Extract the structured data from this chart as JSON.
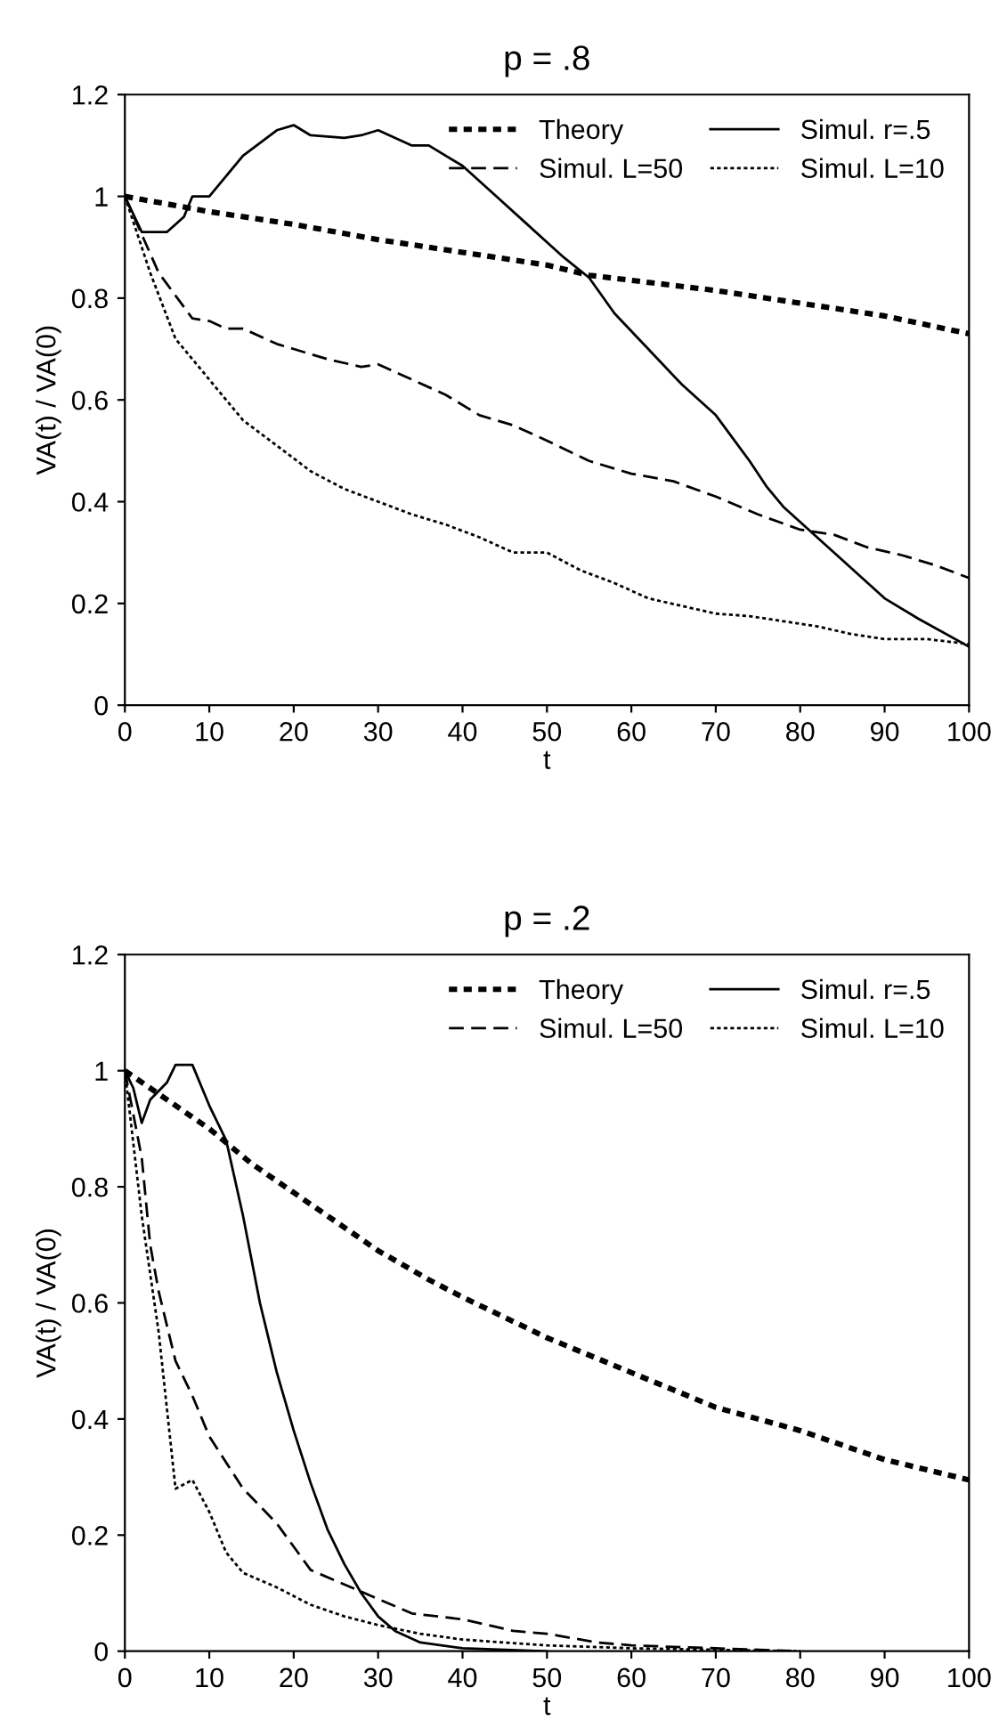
{
  "chart_data": [
    {
      "type": "line",
      "title": "p = .8",
      "xlabel": "t",
      "ylabel": "VA(t) / VA(0)",
      "xlim": [
        0,
        100
      ],
      "ylim": [
        0,
        1.2
      ],
      "xticks": [
        0,
        10,
        20,
        30,
        40,
        50,
        60,
        70,
        80,
        90,
        100
      ],
      "yticks": [
        0,
        {
          "value": 0.2,
          "label": "0.2"
        },
        {
          "value": 0.4,
          "label": "0.4"
        },
        {
          "value": 0.6,
          "label": "0.6"
        },
        {
          "value": 0.8,
          "label": "0.8"
        },
        1,
        {
          "value": 1.2,
          "label": "1.2"
        }
      ],
      "grid": false,
      "legend": "top right",
      "series": [
        {
          "name": "Theory",
          "color": "#000000",
          "line_style": "dotted",
          "x": [
            0,
            10,
            20,
            30,
            40,
            50,
            55,
            60,
            70,
            80,
            90,
            100
          ],
          "values": [
            1,
            0.97,
            0.945,
            0.915,
            0.89,
            0.865,
            0.845,
            0.835,
            0.815,
            0.79,
            0.765,
            0.73
          ]
        },
        {
          "name": "Simul. L=50",
          "color": "#000000",
          "line_style": "dashed",
          "x": [
            0,
            4,
            8,
            10,
            12,
            14,
            18,
            20,
            24,
            28,
            30,
            34,
            38,
            42,
            46,
            50,
            55,
            60,
            65,
            70,
            75,
            80,
            84,
            88,
            92,
            96,
            100
          ],
          "values": [
            1,
            0.85,
            0.76,
            0.755,
            0.74,
            0.74,
            0.71,
            0.7,
            0.68,
            0.665,
            0.67,
            0.64,
            0.61,
            0.57,
            0.55,
            0.52,
            0.48,
            0.455,
            0.44,
            0.41,
            0.375,
            0.345,
            0.335,
            0.31,
            0.295,
            0.275,
            0.25
          ]
        },
        {
          "name": "Simul. r=.5",
          "color": "#000000",
          "line_style": "solid",
          "x": [
            0,
            2,
            5,
            7,
            8,
            10,
            14,
            18,
            20,
            22,
            26,
            28,
            30,
            34,
            36,
            40,
            44,
            48,
            52,
            55,
            58,
            62,
            66,
            70,
            74,
            76,
            78,
            82,
            86,
            90,
            94,
            100
          ],
          "values": [
            1,
            0.93,
            0.93,
            0.96,
            1.0,
            1.0,
            1.08,
            1.13,
            1.14,
            1.12,
            1.115,
            1.12,
            1.13,
            1.1,
            1.1,
            1.06,
            1.0,
            0.94,
            0.88,
            0.84,
            0.77,
            0.7,
            0.63,
            0.57,
            0.48,
            0.43,
            0.39,
            0.33,
            0.27,
            0.21,
            0.17,
            0.115
          ]
        },
        {
          "name": "Simul. L=10",
          "color": "#000000",
          "line_style": "dotted",
          "x": [
            0,
            3,
            6,
            10,
            14,
            18,
            22,
            26,
            30,
            34,
            38,
            42,
            46,
            50,
            54,
            58,
            62,
            66,
            70,
            74,
            78,
            82,
            86,
            90,
            95,
            100
          ],
          "values": [
            1,
            0.85,
            0.72,
            0.64,
            0.56,
            0.51,
            0.46,
            0.425,
            0.4,
            0.375,
            0.355,
            0.33,
            0.3,
            0.3,
            0.265,
            0.24,
            0.21,
            0.195,
            0.18,
            0.175,
            0.165,
            0.155,
            0.14,
            0.13,
            0.13,
            0.12
          ]
        }
      ]
    },
    {
      "type": "line",
      "title": "p = .2",
      "xlabel": "t",
      "ylabel": "VA(t) / VA(0)",
      "xlim": [
        0,
        100
      ],
      "ylim": [
        0,
        1.2
      ],
      "xticks": [
        0,
        10,
        20,
        30,
        40,
        50,
        60,
        70,
        80,
        90,
        100
      ],
      "yticks": [
        0,
        {
          "value": 0.2,
          "label": "0.2"
        },
        {
          "value": 0.4,
          "label": "0.4"
        },
        {
          "value": 0.6,
          "label": "0.6"
        },
        {
          "value": 0.8,
          "label": "0.8"
        },
        1,
        {
          "value": 1.2,
          "label": "1.2"
        }
      ],
      "grid": false,
      "legend": "top right",
      "series": [
        {
          "name": "Theory",
          "color": "#000000",
          "line_style": "dotted",
          "x": [
            0,
            5,
            10,
            15,
            20,
            25,
            30,
            36,
            40,
            50,
            55,
            60,
            70,
            80,
            90,
            100
          ],
          "values": [
            1,
            0.95,
            0.9,
            0.84,
            0.79,
            0.74,
            0.69,
            0.64,
            0.61,
            0.54,
            0.51,
            0.48,
            0.42,
            0.38,
            0.33,
            0.295
          ]
        },
        {
          "name": "Simul. L=50",
          "color": "#000000",
          "line_style": "dashed",
          "x": [
            0,
            2,
            3,
            4,
            6,
            8,
            10,
            14,
            18,
            22,
            26,
            30,
            34,
            40,
            46,
            50,
            56,
            60,
            70,
            80
          ],
          "values": [
            1,
            0.85,
            0.7,
            0.62,
            0.5,
            0.44,
            0.37,
            0.28,
            0.22,
            0.14,
            0.115,
            0.09,
            0.065,
            0.055,
            0.035,
            0.03,
            0.015,
            0.01,
            0.005,
            0
          ]
        },
        {
          "name": "Simul. r=.5",
          "color": "#000000",
          "line_style": "solid",
          "x": [
            0,
            1,
            2,
            3,
            5,
            6,
            8,
            10,
            12,
            14,
            16,
            18,
            20,
            22,
            24,
            26,
            28,
            30,
            32,
            35,
            40,
            50
          ],
          "values": [
            1,
            0.97,
            0.91,
            0.95,
            0.98,
            1.01,
            1.01,
            0.94,
            0.88,
            0.75,
            0.6,
            0.48,
            0.38,
            0.29,
            0.21,
            0.15,
            0.1,
            0.06,
            0.035,
            0.015,
            0.005,
            0
          ]
        },
        {
          "name": "Simul. L=10",
          "color": "#000000",
          "line_style": "dotted",
          "x": [
            0,
            2,
            4,
            6,
            8,
            10,
            12,
            14,
            18,
            22,
            26,
            30,
            35,
            40,
            50,
            60,
            80
          ],
          "values": [
            1,
            0.75,
            0.55,
            0.28,
            0.295,
            0.24,
            0.17,
            0.135,
            0.11,
            0.08,
            0.06,
            0.045,
            0.03,
            0.02,
            0.01,
            0.005,
            0
          ]
        }
      ]
    }
  ]
}
